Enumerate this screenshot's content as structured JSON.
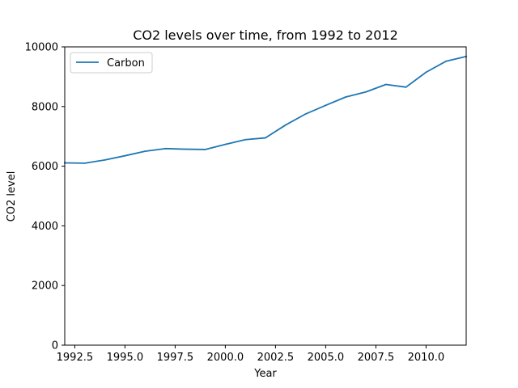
{
  "chart_data": {
    "type": "line",
    "title": "CO2 levels over time, from 1992 to 2012",
    "xlabel": "Year",
    "ylabel": "CO2 level",
    "xlim": [
      1992,
      2012
    ],
    "ylim": [
      0,
      10000
    ],
    "x_ticks": [
      1992.5,
      1995.0,
      1997.5,
      2000.0,
      2002.5,
      2005.0,
      2007.5,
      2010.0
    ],
    "x_tick_labels": [
      "1992.5",
      "1995.0",
      "1997.5",
      "2000.0",
      "2002.5",
      "2005.0",
      "2007.5",
      "2010.0"
    ],
    "y_ticks": [
      0,
      2000,
      4000,
      6000,
      8000,
      10000
    ],
    "y_tick_labels": [
      "0",
      "2000",
      "4000",
      "6000",
      "8000",
      "10000"
    ],
    "legend_position": "top-left",
    "grid": false,
    "series": [
      {
        "name": "Carbon",
        "color": "#1f77b4",
        "x": [
          1992,
          1993,
          1994,
          1995,
          1996,
          1997,
          1998,
          1999,
          2000,
          2001,
          2002,
          2003,
          2004,
          2005,
          2006,
          2007,
          2008,
          2009,
          2010,
          2011,
          2012
        ],
        "y": [
          6110,
          6100,
          6210,
          6350,
          6500,
          6590,
          6570,
          6560,
          6730,
          6890,
          6950,
          7380,
          7750,
          8040,
          8320,
          8490,
          8740,
          8650,
          9150,
          9520,
          9680
        ]
      }
    ]
  }
}
